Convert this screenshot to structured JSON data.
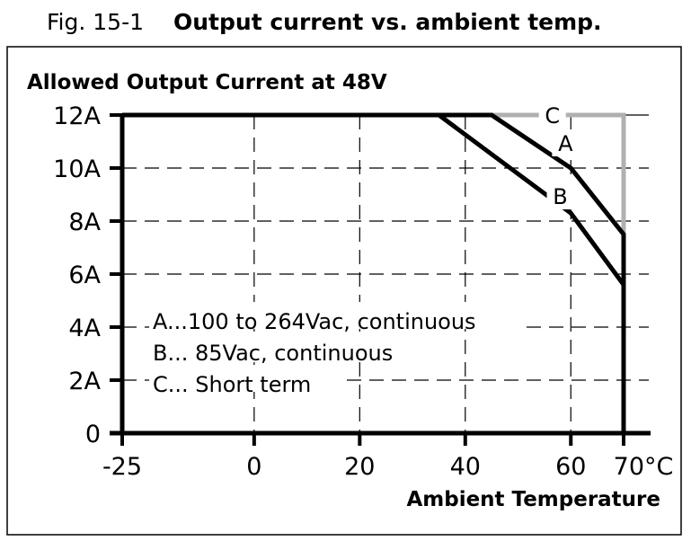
{
  "figure": {
    "number": "Fig. 15-1",
    "title": "Output current vs. ambient temp."
  },
  "chart_data": {
    "type": "line",
    "title": "Output current vs. ambient temp.",
    "ylabel": "Allowed Output Current at 48V",
    "xlabel": "Ambient Temperature",
    "xlim": [
      -25,
      70
    ],
    "ylim": [
      0,
      12
    ],
    "grid": true,
    "x_ticks": [
      {
        "v": -25,
        "label": "-25"
      },
      {
        "v": 0,
        "label": "0"
      },
      {
        "v": 20,
        "label": "20"
      },
      {
        "v": 40,
        "label": "40"
      },
      {
        "v": 60,
        "label": "60"
      },
      {
        "v": 70,
        "label": "70°C"
      }
    ],
    "y_ticks": [
      {
        "v": 0,
        "label": "0"
      },
      {
        "v": 2,
        "label": "2A"
      },
      {
        "v": 4,
        "label": "4A"
      },
      {
        "v": 6,
        "label": "6A"
      },
      {
        "v": 8,
        "label": "8A"
      },
      {
        "v": 10,
        "label": "10A"
      },
      {
        "v": 12,
        "label": "12A"
      }
    ],
    "series": [
      {
        "name": "A",
        "color": "#000000",
        "points": [
          [
            -25,
            12
          ],
          [
            45,
            12
          ],
          [
            60,
            10
          ],
          [
            70,
            7.5
          ],
          [
            70,
            0
          ]
        ]
      },
      {
        "name": "B",
        "color": "#000000",
        "points": [
          [
            -25,
            12
          ],
          [
            35,
            12
          ],
          [
            60,
            8.3
          ],
          [
            70,
            5.6
          ],
          [
            70,
            0
          ]
        ]
      },
      {
        "name": "C",
        "color": "#b0b0b0",
        "points": [
          [
            45,
            12
          ],
          [
            70,
            12
          ],
          [
            70,
            7.5
          ]
        ]
      }
    ],
    "legend": {
      "placement": "bottom-left",
      "entries": [
        "A...100 to 264Vac, continuous",
        "B... 85Vac, continuous",
        "C... Short term"
      ]
    }
  }
}
